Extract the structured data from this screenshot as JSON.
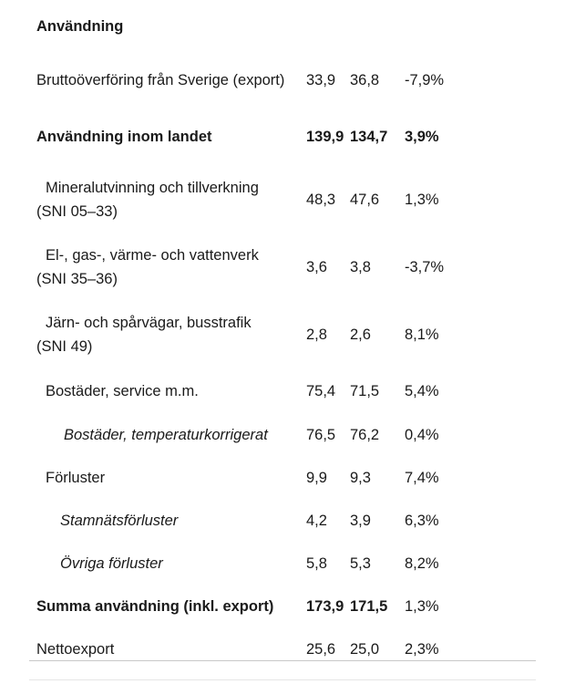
{
  "heading": "Användning",
  "rows": [
    {
      "label": "Bruttoöverföring från Sverige (export)",
      "v1": "33,9",
      "v2": "36,8",
      "v3": "-7,9%"
    },
    {
      "label": "Användning inom landet",
      "v1": "139,9",
      "v2": "134,7",
      "v3": "3,9%"
    },
    {
      "label": "Mineralutvinning och tillverkning (SNI 05–33)",
      "v1": "48,3",
      "v2": "47,6",
      "v3": "1,3%"
    },
    {
      "label": "El-, gas-, värme- och vattenverk (SNI 35–36)",
      "v1": "3,6",
      "v2": "3,8",
      "v3": "-3,7%"
    },
    {
      "label": "Järn- och spårvägar, busstrafik (SNI 49)",
      "v1": "2,8",
      "v2": "2,6",
      "v3": "8,1%"
    },
    {
      "label": "Bostäder, service m.m.",
      "v1": "75,4",
      "v2": "71,5",
      "v3": "5,4%"
    },
    {
      "label": "Bostäder, temperaturkorrigerat",
      "v1": "76,5",
      "v2": "76,2",
      "v3": "0,4%"
    },
    {
      "label": "Förluster",
      "v1": "9,9",
      "v2": "9,3",
      "v3": "7,4%"
    },
    {
      "label": "Stamnätsförluster",
      "v1": "4,2",
      "v2": "3,9",
      "v3": "6,3%"
    },
    {
      "label": "Övriga förluster",
      "v1": "5,8",
      "v2": "5,3",
      "v3": "8,2%"
    },
    {
      "label": "Summa användning (inkl. export)",
      "v1": "173,9",
      "v2": "171,5",
      "v3": "1,3%"
    },
    {
      "label": "Nettoexport",
      "v1": "25,6",
      "v2": "25,0",
      "v3": "2,3%"
    }
  ]
}
